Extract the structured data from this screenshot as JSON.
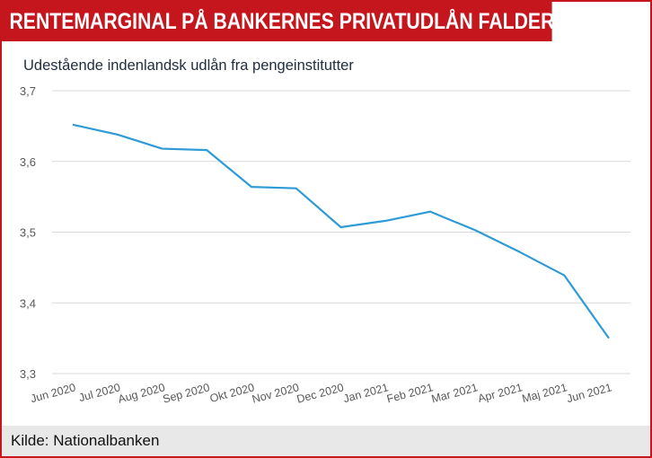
{
  "headline": "RENTEMARGINAL PÅ BANKERNES PRIVATUDLÅN FALDER STADIG",
  "source": "Kilde: Nationalbanken",
  "colors": {
    "accent": "#c4161c",
    "line": "#2e9bd6",
    "grid": "#d9d9d9"
  },
  "chart_data": {
    "type": "line",
    "title": "Udestående indenlandsk udlån fra pengeinstitutter",
    "categories": [
      "Jun 2020",
      "Jul 2020",
      "Aug 2020",
      "Sep 2020",
      "Okt 2020",
      "Nov 2020",
      "Dec 2020",
      "Jan 2021",
      "Feb 2021",
      "Mar 2021",
      "Apr 2021",
      "Maj 2021",
      "Jun 2021"
    ],
    "series": [
      {
        "values": [
          3.652,
          3.638,
          3.618,
          3.616,
          3.564,
          3.562,
          3.507,
          3.516,
          3.529,
          3.503,
          3.472,
          3.439,
          3.35
        ]
      }
    ],
    "ylim": [
      3.3,
      3.7
    ],
    "yticks": [
      "3,3",
      "3,4",
      "3,5",
      "3,6",
      "3,7"
    ],
    "grid": true
  }
}
